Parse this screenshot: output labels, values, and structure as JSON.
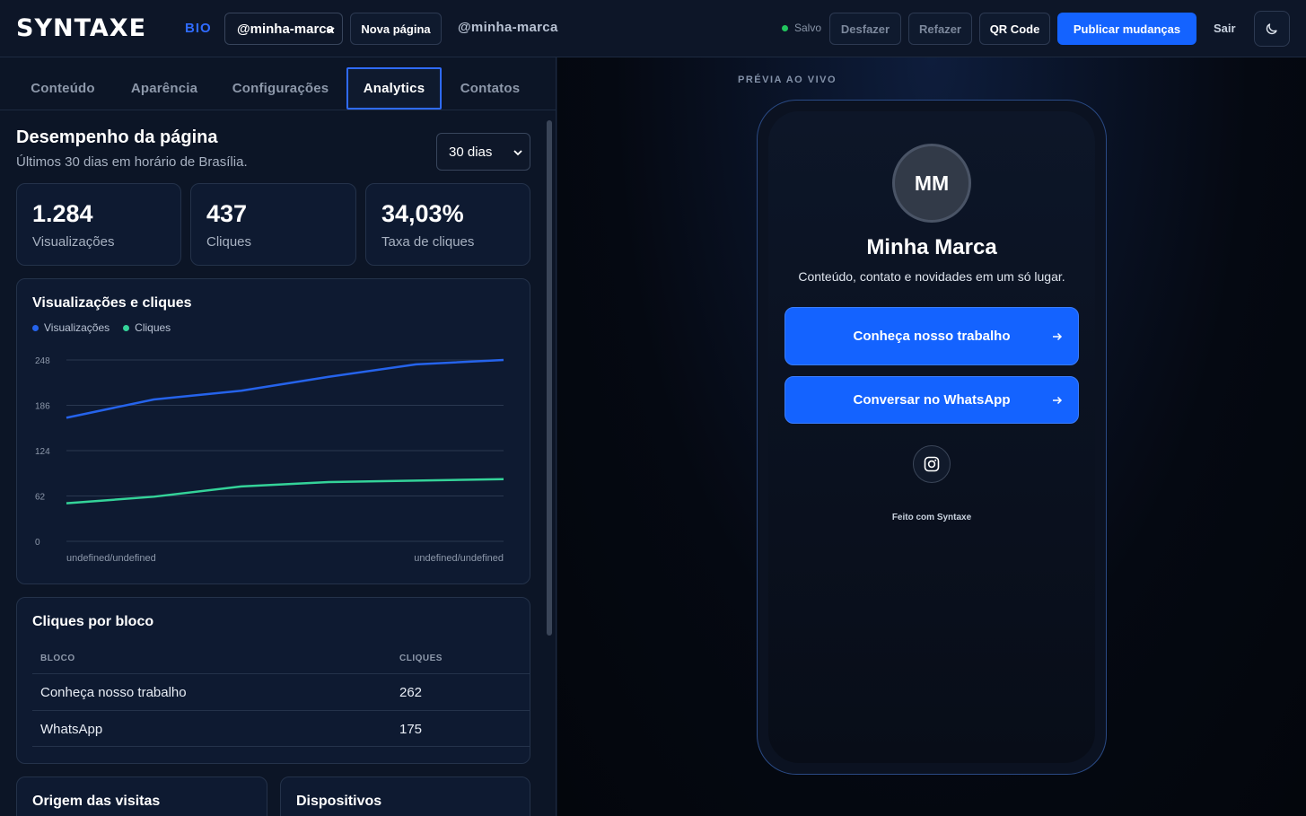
{
  "header": {
    "logo": "SYNTAXE",
    "logo_suffix": "BIO",
    "page_select_value": "@minha-marca",
    "new_page_label": "Nova página",
    "handle": "@minha-marca",
    "saved_label": "Salvo",
    "undo_label": "Desfazer",
    "redo_label": "Refazer",
    "qr_label": "QR Code",
    "publish_label": "Publicar mudanças",
    "logout_label": "Sair",
    "accent_color": "#1463ff",
    "saved_color": "#22c55e"
  },
  "tabs": [
    {
      "label": "Conteúdo",
      "active": false
    },
    {
      "label": "Aparência",
      "active": false
    },
    {
      "label": "Configurações",
      "active": false
    },
    {
      "label": "Analytics",
      "active": true
    },
    {
      "label": "Contatos",
      "active": false
    }
  ],
  "performance": {
    "title": "Desempenho da página",
    "subtitle": "Últimos 30 dias em horário de Brasília.",
    "range_value": "30 dias"
  },
  "kpis": [
    {
      "value": "1.284",
      "label": "Visualizações"
    },
    {
      "value": "437",
      "label": "Cliques"
    },
    {
      "value": "34,03%",
      "label": "Taxa de cliques"
    }
  ],
  "chart": {
    "title": "Visualizações e cliques",
    "legend": [
      "Visualizações",
      "Cliques"
    ]
  },
  "chart_data": {
    "type": "line",
    "title": "Visualizações e cliques",
    "x": [
      1,
      2,
      3,
      4,
      5,
      6
    ],
    "x_tick_labels": [
      "undefined/undefined",
      "undefined/undefined"
    ],
    "yticks": [
      "0",
      "62",
      "124",
      "186",
      "248"
    ],
    "ylim": [
      0,
      248
    ],
    "grid": true,
    "legend_position": "top-left",
    "series": [
      {
        "name": "Visualizações",
        "color": "#2563eb",
        "values": [
          169,
          194,
          206,
          225,
          242,
          248
        ]
      },
      {
        "name": "Cliques",
        "color": "#34d399",
        "values": [
          52,
          61,
          75,
          81,
          83,
          85
        ]
      }
    ]
  },
  "block_clicks": {
    "title": "Cliques por bloco",
    "columns": [
      "BLOCO",
      "CLIQUES"
    ],
    "rows": [
      {
        "block": "Conheça nosso trabalho",
        "clicks": "262"
      },
      {
        "block": "WhatsApp",
        "clicks": "175"
      }
    ]
  },
  "bottom_cards": {
    "origin_title": "Origem das visitas",
    "devices_title": "Dispositivos"
  },
  "preview": {
    "label": "PRÉVIA AO VIVO",
    "avatar_initials": "MM",
    "name": "Minha Marca",
    "bio": "Conteúdo, contato e novidades em um só lugar.",
    "links": [
      {
        "label": "Conheça nosso trabalho"
      },
      {
        "label": "Conversar no WhatsApp"
      }
    ],
    "social_icon": "instagram-icon",
    "footer": "Feito com Syntaxe"
  }
}
